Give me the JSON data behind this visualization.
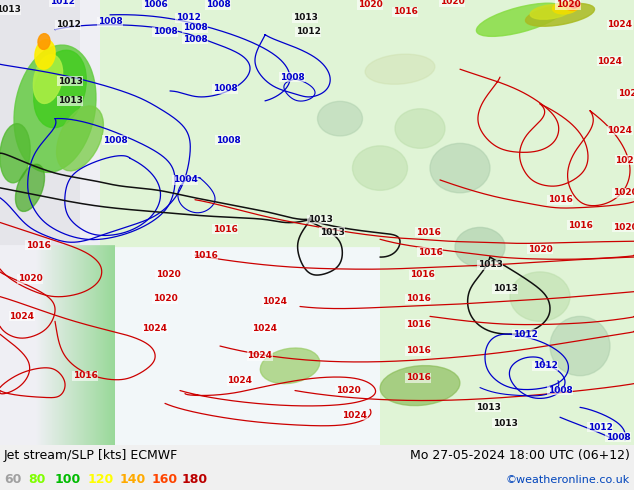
{
  "title_left": "Jet stream/SLP [kts] ECMWF",
  "title_right": "Mo 27-05-2024 18:00 UTC (06+12)",
  "credit": "©weatheronline.co.uk",
  "legend_values": [
    "60",
    "80",
    "100",
    "120",
    "140",
    "160",
    "180"
  ],
  "legend_colors": [
    "#a0a0a0",
    "#80ff00",
    "#00bb00",
    "#ffff00",
    "#ffaa00",
    "#ff4400",
    "#bb0000"
  ],
  "bg_color": "#f0f0f0",
  "bottom_bar_color": "#d8d8d8",
  "fig_width": 6.34,
  "fig_height": 4.9,
  "dpi": 100,
  "text_color": "#000000",
  "credit_color": "#0044bb",
  "font_size_title": 9,
  "font_size_legend": 9,
  "font_size_credit": 8,
  "font_size_label": 6.5
}
